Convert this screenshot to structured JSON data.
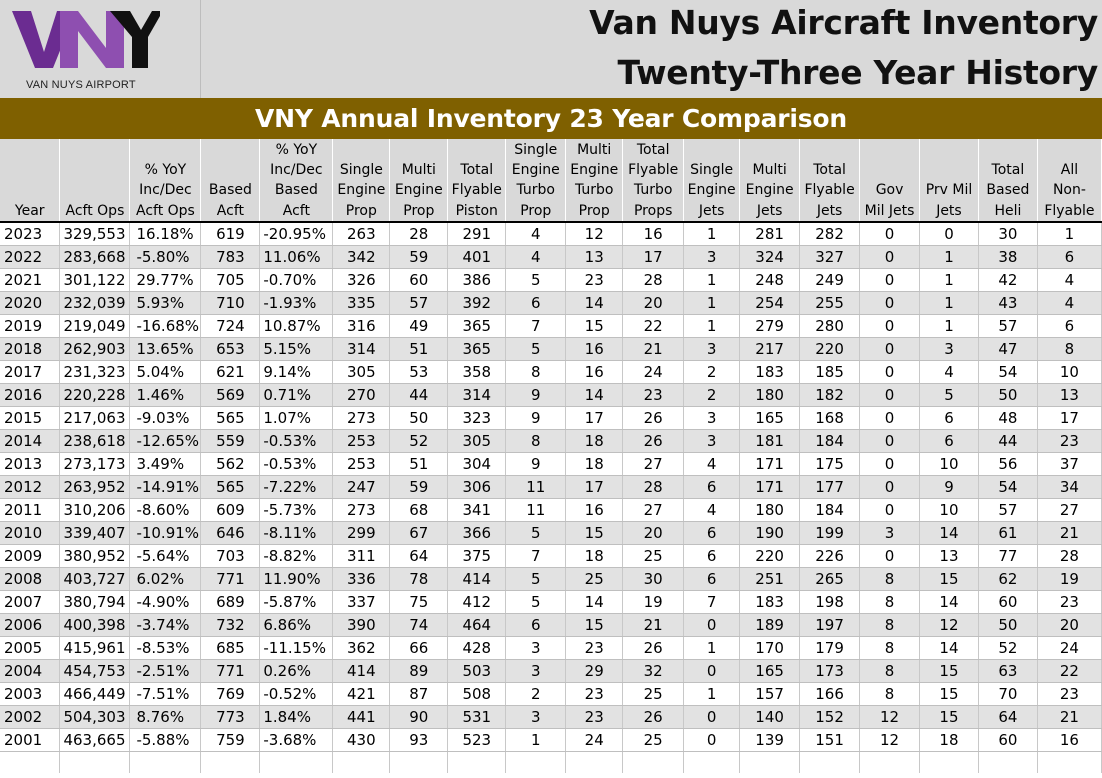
{
  "logo": {
    "wordmark": "VNY",
    "caption": "VAN NUYS AIRPORT",
    "colors": {
      "v": "#6b2c91",
      "n": "#8e4fb0",
      "y": "#111111"
    }
  },
  "title": {
    "line1": "Van Nuys Aircraft Inventory",
    "line2": "Twenty-Three Year History"
  },
  "banner": "VNY Annual Inventory 23 Year Comparison",
  "colors": {
    "banner": "#7f6000",
    "header_bg": "#d9d9d9",
    "stripe": "#e2e2e2"
  },
  "columns": [
    [
      "Year"
    ],
    [
      "Acft Ops"
    ],
    [
      "% YoY",
      "Inc/Dec",
      "Acft Ops"
    ],
    [
      "Based",
      "Acft"
    ],
    [
      "% YoY",
      "Inc/Dec",
      "Based",
      "Acft"
    ],
    [
      "Single",
      "Engine",
      "Prop"
    ],
    [
      "Multi",
      "Engine",
      "Prop"
    ],
    [
      "Total",
      "Flyable",
      "Piston"
    ],
    [
      "Single",
      "Engine",
      "Turbo",
      "Prop"
    ],
    [
      "Multi",
      "Engine",
      "Turbo",
      "Prop"
    ],
    [
      "Total",
      "Flyable",
      "Turbo",
      "Props"
    ],
    [
      "Single",
      "Engine",
      "Jets"
    ],
    [
      "Multi",
      "Engine",
      "Jets"
    ],
    [
      "Total",
      "Flyable",
      "Jets"
    ],
    [
      "Gov",
      "Mil Jets"
    ],
    [
      "Prv Mil",
      "Jets"
    ],
    [
      "Total",
      "Based",
      "Heli"
    ],
    [
      "All",
      "Non-",
      "Flyable"
    ]
  ],
  "rows": [
    [
      "2023",
      "329,553",
      "16.18%",
      "619",
      "-20.95%",
      "263",
      "28",
      "291",
      "4",
      "12",
      "16",
      "1",
      "281",
      "282",
      "0",
      "0",
      "30",
      "1"
    ],
    [
      "2022",
      "283,668",
      "-5.80%",
      "783",
      "11.06%",
      "342",
      "59",
      "401",
      "4",
      "13",
      "17",
      "3",
      "324",
      "327",
      "0",
      "1",
      "38",
      "6"
    ],
    [
      "2021",
      "301,122",
      "29.77%",
      "705",
      "-0.70%",
      "326",
      "60",
      "386",
      "5",
      "23",
      "28",
      "1",
      "248",
      "249",
      "0",
      "1",
      "42",
      "4"
    ],
    [
      "2020",
      "232,039",
      "5.93%",
      "710",
      "-1.93%",
      "335",
      "57",
      "392",
      "6",
      "14",
      "20",
      "1",
      "254",
      "255",
      "0",
      "1",
      "43",
      "4"
    ],
    [
      "2019",
      "219,049",
      "-16.68%",
      "724",
      "10.87%",
      "316",
      "49",
      "365",
      "7",
      "15",
      "22",
      "1",
      "279",
      "280",
      "0",
      "1",
      "57",
      "6"
    ],
    [
      "2018",
      "262,903",
      "13.65%",
      "653",
      "5.15%",
      "314",
      "51",
      "365",
      "5",
      "16",
      "21",
      "3",
      "217",
      "220",
      "0",
      "3",
      "47",
      "8"
    ],
    [
      "2017",
      "231,323",
      "5.04%",
      "621",
      "9.14%",
      "305",
      "53",
      "358",
      "8",
      "16",
      "24",
      "2",
      "183",
      "185",
      "0",
      "4",
      "54",
      "10"
    ],
    [
      "2016",
      "220,228",
      "1.46%",
      "569",
      "0.71%",
      "270",
      "44",
      "314",
      "9",
      "14",
      "23",
      "2",
      "180",
      "182",
      "0",
      "5",
      "50",
      "13"
    ],
    [
      "2015",
      "217,063",
      "-9.03%",
      "565",
      "1.07%",
      "273",
      "50",
      "323",
      "9",
      "17",
      "26",
      "3",
      "165",
      "168",
      "0",
      "6",
      "48",
      "17"
    ],
    [
      "2014",
      "238,618",
      "-12.65%",
      "559",
      "-0.53%",
      "253",
      "52",
      "305",
      "8",
      "18",
      "26",
      "3",
      "181",
      "184",
      "0",
      "6",
      "44",
      "23"
    ],
    [
      "2013",
      "273,173",
      "3.49%",
      "562",
      "-0.53%",
      "253",
      "51",
      "304",
      "9",
      "18",
      "27",
      "4",
      "171",
      "175",
      "0",
      "10",
      "56",
      "37"
    ],
    [
      "2012",
      "263,952",
      "-14.91%",
      "565",
      "-7.22%",
      "247",
      "59",
      "306",
      "11",
      "17",
      "28",
      "6",
      "171",
      "177",
      "0",
      "9",
      "54",
      "34"
    ],
    [
      "2011",
      "310,206",
      "-8.60%",
      "609",
      "-5.73%",
      "273",
      "68",
      "341",
      "11",
      "16",
      "27",
      "4",
      "180",
      "184",
      "0",
      "10",
      "57",
      "27"
    ],
    [
      "2010",
      "339,407",
      "-10.91%",
      "646",
      "-8.11%",
      "299",
      "67",
      "366",
      "5",
      "15",
      "20",
      "6",
      "190",
      "199",
      "3",
      "14",
      "61",
      "21"
    ],
    [
      "2009",
      "380,952",
      "-5.64%",
      "703",
      "-8.82%",
      "311",
      "64",
      "375",
      "7",
      "18",
      "25",
      "6",
      "220",
      "226",
      "0",
      "13",
      "77",
      "28"
    ],
    [
      "2008",
      "403,727",
      "6.02%",
      "771",
      "11.90%",
      "336",
      "78",
      "414",
      "5",
      "25",
      "30",
      "6",
      "251",
      "265",
      "8",
      "15",
      "62",
      "19"
    ],
    [
      "2007",
      "380,794",
      "-4.90%",
      "689",
      "-5.87%",
      "337",
      "75",
      "412",
      "5",
      "14",
      "19",
      "7",
      "183",
      "198",
      "8",
      "14",
      "60",
      "23"
    ],
    [
      "2006",
      "400,398",
      "-3.74%",
      "732",
      "6.86%",
      "390",
      "74",
      "464",
      "6",
      "15",
      "21",
      "0",
      "189",
      "197",
      "8",
      "12",
      "50",
      "20"
    ],
    [
      "2005",
      "415,961",
      "-8.53%",
      "685",
      "-11.15%",
      "362",
      "66",
      "428",
      "3",
      "23",
      "26",
      "1",
      "170",
      "179",
      "8",
      "14",
      "52",
      "24"
    ],
    [
      "2004",
      "454,753",
      "-2.51%",
      "771",
      "0.26%",
      "414",
      "89",
      "503",
      "3",
      "29",
      "32",
      "0",
      "165",
      "173",
      "8",
      "15",
      "63",
      "22"
    ],
    [
      "2003",
      "466,449",
      "-7.51%",
      "769",
      "-0.52%",
      "421",
      "87",
      "508",
      "2",
      "23",
      "25",
      "1",
      "157",
      "166",
      "8",
      "15",
      "70",
      "23"
    ],
    [
      "2002",
      "504,303",
      "8.76%",
      "773",
      "1.84%",
      "441",
      "90",
      "531",
      "3",
      "23",
      "26",
      "0",
      "140",
      "152",
      "12",
      "15",
      "64",
      "21"
    ],
    [
      "2001",
      "463,665",
      "-5.88%",
      "759",
      "-3.68%",
      "430",
      "93",
      "523",
      "1",
      "24",
      "25",
      "0",
      "139",
      "151",
      "12",
      "18",
      "60",
      "16"
    ]
  ]
}
